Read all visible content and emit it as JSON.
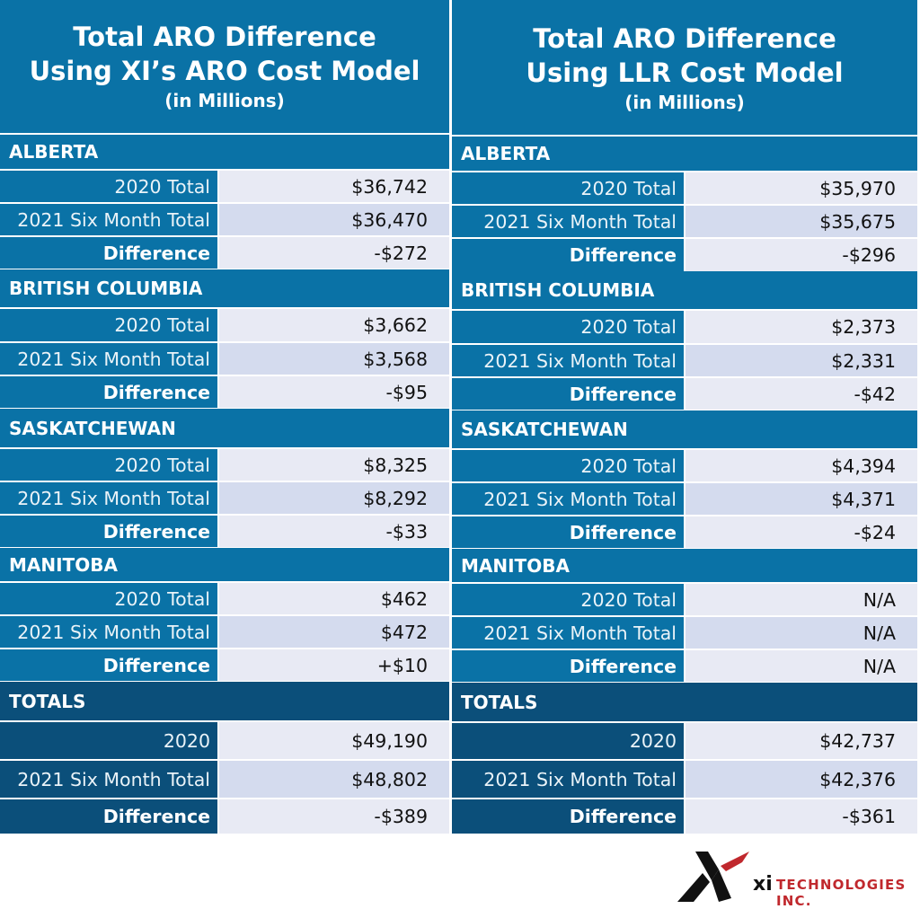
{
  "left": {
    "title_line1": "Total ARO Difference",
    "title_line2": "Using XI’s ARO Cost Model",
    "subtitle": "(in Millions)",
    "sections": [
      {
        "name": "ALBERTA",
        "rows": [
          {
            "label": "2020 Total",
            "value": "$36,742"
          },
          {
            "label": "2021 Six Month Total",
            "value": "$36,470"
          },
          {
            "label": "Difference",
            "value": "-$272"
          }
        ]
      },
      {
        "name": "BRITISH COLUMBIA",
        "rows": [
          {
            "label": "2020 Total",
            "value": "$3,662"
          },
          {
            "label": "2021 Six Month Total",
            "value": "$3,568"
          },
          {
            "label": "Difference",
            "value": "-$95"
          }
        ]
      },
      {
        "name": "SASKATCHEWAN",
        "rows": [
          {
            "label": "2020 Total",
            "value": "$8,325"
          },
          {
            "label": "2021 Six Month Total",
            "value": "$8,292"
          },
          {
            "label": "Difference",
            "value": "-$33"
          }
        ]
      },
      {
        "name": "MANITOBA",
        "rows": [
          {
            "label": "2020 Total",
            "value": "$462"
          },
          {
            "label": "2021 Six Month Total",
            "value": "$472"
          },
          {
            "label": "Difference",
            "value": "+$10"
          }
        ]
      },
      {
        "name": "TOTALS",
        "rows": [
          {
            "label": "2020",
            "value": "$49,190"
          },
          {
            "label": "2021 Six Month Total",
            "value": "$48,802"
          },
          {
            "label": "Difference",
            "value": "-$389"
          }
        ]
      }
    ]
  },
  "right": {
    "title_line1": "Total ARO Difference",
    "title_line2": "Using LLR Cost Model",
    "subtitle": "(in Millions)",
    "sections": [
      {
        "name": "ALBERTA",
        "rows": [
          {
            "label": "2020 Total",
            "value": "$35,970"
          },
          {
            "label": "2021 Six Month Total",
            "value": "$35,675"
          },
          {
            "label": "Difference",
            "value": "-$296"
          }
        ]
      },
      {
        "name": "BRITISH COLUMBIA",
        "rows": [
          {
            "label": "2020 Total",
            "value": "$2,373"
          },
          {
            "label": "2021 Six Month Total",
            "value": "$2,331"
          },
          {
            "label": "Difference",
            "value": "-$42"
          }
        ]
      },
      {
        "name": "SASKATCHEWAN",
        "rows": [
          {
            "label": "2020 Total",
            "value": "$4,394"
          },
          {
            "label": "2021 Six Month Total",
            "value": "$4,371"
          },
          {
            "label": "Difference",
            "value": "-$24"
          }
        ]
      },
      {
        "name": "MANITOBA",
        "rows": [
          {
            "label": "2020 Total",
            "value": "N/A"
          },
          {
            "label": "2021 Six Month Total",
            "value": "N/A"
          },
          {
            "label": "Difference",
            "value": "N/A"
          }
        ]
      },
      {
        "name": "TOTALS",
        "rows": [
          {
            "label": "2020",
            "value": "$42,737"
          },
          {
            "label": "2021 Six Month Total",
            "value": "$42,376"
          },
          {
            "label": "Difference",
            "value": "-$361"
          }
        ]
      }
    ]
  },
  "logo": {
    "xi": "xi",
    "company": "TECHNOLOGIES INC."
  },
  "colors": {
    "header_blue": "#0a72a6",
    "totals_navy": "#0b4f7a",
    "cell_light": "#e8eaf4",
    "cell_mid": "#d4dbee",
    "logo_red": "#c0282d"
  }
}
